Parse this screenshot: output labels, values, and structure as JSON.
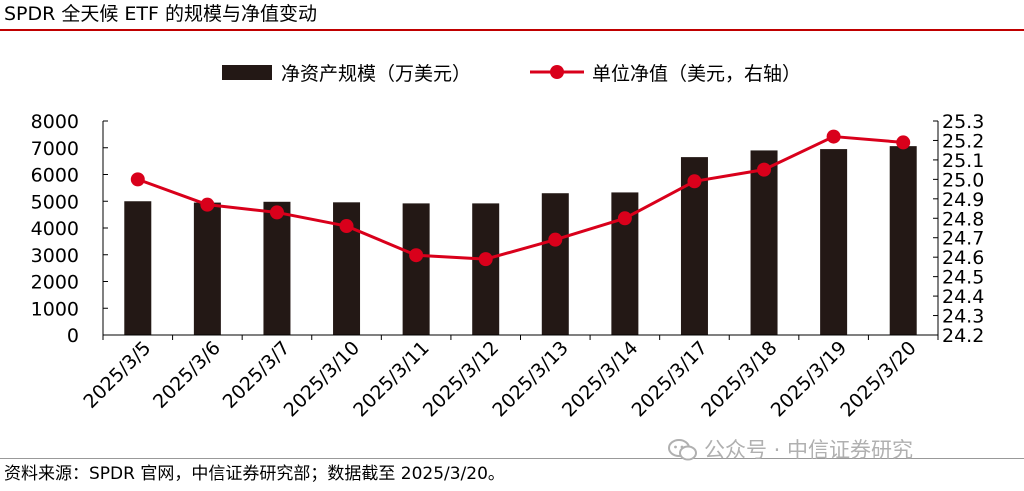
{
  "title": "SPDR 全天候 ETF 的规模与净值变动",
  "source": "资料来源：SPDR 官网，中信证券研究部；数据截至 2025/3/20。",
  "watermark": "公众号 · 中信证券研究",
  "colors": {
    "bar": "#231815",
    "line": "#d9001b",
    "accent_rule": "#c00000"
  },
  "chart_data": {
    "type": "bar+line",
    "categories": [
      "2025/3/5",
      "2025/3/6",
      "2025/3/7",
      "2025/3/10",
      "2025/3/11",
      "2025/3/12",
      "2025/3/13",
      "2025/3/14",
      "2025/3/17",
      "2025/3/18",
      "2025/3/19",
      "2025/3/20"
    ],
    "series": [
      {
        "name": "净资产规模（万美元）",
        "type": "bar",
        "axis": "left",
        "values": [
          5000,
          4950,
          4980,
          4960,
          4920,
          4920,
          5300,
          5330,
          6650,
          6900,
          6950,
          7060
        ]
      },
      {
        "name": "单位净值（美元，右轴）",
        "type": "line",
        "axis": "right",
        "values": [
          25.0,
          24.87,
          24.83,
          24.76,
          24.61,
          24.59,
          24.69,
          24.8,
          24.99,
          25.05,
          25.22,
          25.19
        ]
      }
    ],
    "y_left": {
      "min": 0,
      "max": 8000,
      "step": 1000,
      "ticks": [
        "0",
        "1000",
        "2000",
        "3000",
        "4000",
        "5000",
        "6000",
        "7000",
        "8000"
      ]
    },
    "y_right": {
      "min": 24.2,
      "max": 25.3,
      "step": 0.1,
      "ticks": [
        "24.2",
        "24.3",
        "24.4",
        "24.5",
        "24.6",
        "24.7",
        "24.8",
        "24.9",
        "25.0",
        "25.1",
        "25.2",
        "25.3"
      ]
    },
    "legend_position": "top-center",
    "grid": false
  }
}
